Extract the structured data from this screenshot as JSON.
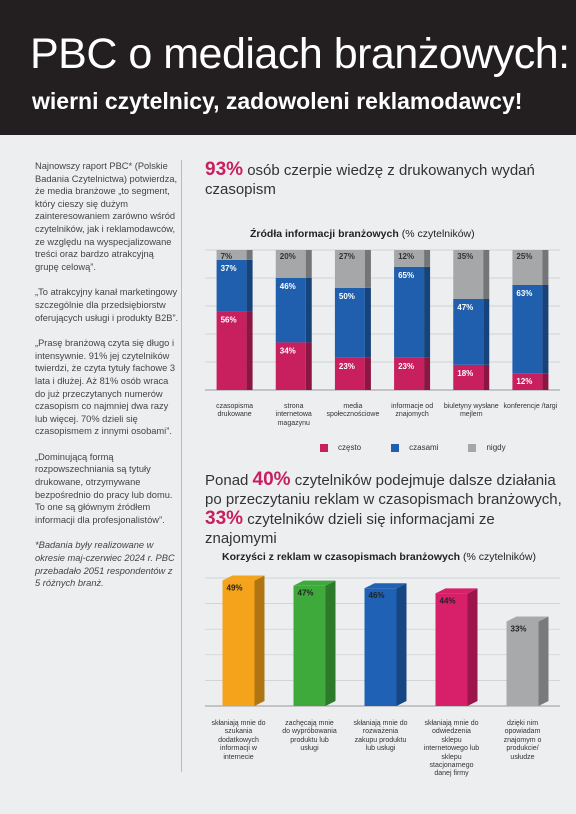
{
  "header": {
    "title": "PBC o mediach branżowych:",
    "subtitle": "wierni czytelnicy, zadowoleni reklamodawcy!"
  },
  "left": {
    "p1": "Najnowszy raport PBC* (Polskie Badania Czytelnictwa) potwierdza, że media branżowe „to segment, który cieszy się dużym zainteresowaniem zarówno wśród czytelników, jak i reklamodawców, ze względu na wyspecjalizowane treści oraz bardzo atrakcyjną grupę celową”.",
    "p2": "„To atrakcyjny kanał marketingowy szczególnie dla przedsiębiorstw oferujących usługi i produkty B2B”.",
    "p3": "„Prasę branżową czyta się długo i intensywnie. 91% jej czytelników twierdzi, że czyta tytuły fachowe 3 lata i dłużej. Aż 81% osób wraca do już przeczytanych numerów czasopism co najmniej dwa razy lub więcej. 70% dzieli się czasopismem z innymi osobami”.",
    "p4": "„Dominującą formą rozpowszechniania są tytuły drukowane, otrzymywane bezpośrednio do pracy lub domu. To one są głównym źródłem informacji dla profesjonalistów”.",
    "note": "*Badania były realizowane w okresie maj-czerwiec 2024 r. PBC przebadało 2051 respondentów z 5 różnych branż."
  },
  "headline1": {
    "big": "93%",
    "text": " osób czerpie wiedzę z drukowanych wydań czasopism"
  },
  "headline2": {
    "l1a": "Ponad ",
    "l1big": "40%",
    "l1b": " czytelników podejmuje dalsze działania",
    "l2": "po przeczytaniu reklam w czasopismach branżowych,",
    "l3big": "33%",
    "l3b": " czytelników dzieli się informacjami ze znajomymi"
  },
  "chart1_title": {
    "bold": "Źródła informacji branżowych",
    "rest": " (% czytelników)"
  },
  "chart2_title": {
    "bold": "Korzyści z reklam w czasopismach branżowych",
    "rest": " (% czytelników)"
  },
  "colors": {
    "czesto": "#c8205f",
    "czasami": "#1f5fae",
    "nigdy": "#a5a7a9",
    "orange": "#f5a31a",
    "green": "#3eaa3c",
    "blue": "#1f62b5",
    "pink": "#d81f6a",
    "gray": "#a7a9ab"
  },
  "chart_data": [
    {
      "type": "bar",
      "stacked": true,
      "title": "Źródła informacji branżowych (% czytelników)",
      "categories": [
        "czasopisma drukowane",
        "strona internetowa magazynu",
        "media społecznościowe",
        "informacje od znajomych",
        "biuletyny wysłane mejlem",
        "konferencje /targi"
      ],
      "series": [
        {
          "name": "często",
          "values": [
            56,
            34,
            23,
            23,
            18,
            12
          ]
        },
        {
          "name": "czasami",
          "values": [
            37,
            46,
            50,
            65,
            47,
            63
          ]
        },
        {
          "name": "nigdy",
          "values": [
            7,
            20,
            27,
            12,
            35,
            25
          ]
        }
      ],
      "labels": {
        "czesto": [
          "56%",
          "34%",
          "23%",
          "23%",
          "18%",
          "12%"
        ],
        "czasami": [
          "37%",
          "46%",
          "50%",
          "65%",
          "47%",
          "63%"
        ],
        "nigdy": [
          "7%",
          "20%",
          "27%",
          "12%",
          "35%",
          "25%"
        ]
      },
      "ylim": [
        0,
        100
      ],
      "legend": "bottom"
    },
    {
      "type": "bar",
      "title": "Korzyści z reklam w czasopismach branżowych (% czytelników)",
      "categories": [
        "skłaniają mnie do szukania dodatkowych informacji w internecie",
        "zachęcają mnie do wypróbowania produktu lub usługi",
        "skłaniają mnie do rozważenia zakupu produktu lub usługi",
        "skłaniają mnie do odwiedzenia sklepu internetowego lub sklepu stacjonarnego danej firmy",
        "dzięki nim opowiadam znajomym o produkcie/ usłudze"
      ],
      "values": [
        49,
        47,
        46,
        44,
        33
      ],
      "labels": [
        "49%",
        "47%",
        "46%",
        "44%",
        "33%"
      ],
      "ylim": [
        0,
        50
      ]
    }
  ]
}
